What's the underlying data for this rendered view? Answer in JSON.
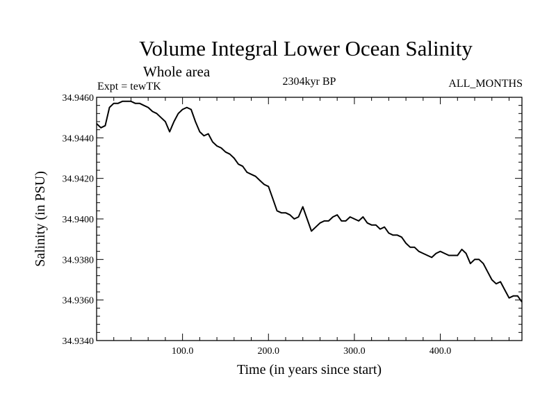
{
  "chart_data": {
    "type": "line",
    "title": "Volume Integral Lower Ocean Salinity",
    "subtitle": "Whole area",
    "experiment": "Expt = tewTK",
    "period": "2304kyr BP",
    "months": "ALL_MONTHS",
    "xlabel": "Time (in years since start)",
    "ylabel": "Salinity (in PSU)",
    "xlim": [
      0,
      495
    ],
    "ylim": [
      34.934,
      34.946
    ],
    "x_ticks": [
      100,
      200,
      300,
      400
    ],
    "x_tick_labels": [
      "100.0",
      "200.0",
      "300.0",
      "400.0"
    ],
    "y_ticks": [
      34.934,
      34.936,
      34.938,
      34.94,
      34.942,
      34.944,
      34.946
    ],
    "y_tick_labels": [
      "34.9340",
      "34.9360",
      "34.9380",
      "34.9400",
      "34.9420",
      "34.9440",
      "34.9460"
    ],
    "series": [
      {
        "name": "Salinity",
        "x": [
          0,
          5,
          10,
          15,
          20,
          25,
          30,
          35,
          40,
          45,
          50,
          55,
          60,
          65,
          70,
          75,
          80,
          85,
          88,
          90,
          95,
          100,
          105,
          110,
          115,
          120,
          125,
          130,
          135,
          140,
          145,
          150,
          155,
          160,
          165,
          170,
          175,
          180,
          185,
          190,
          195,
          200,
          205,
          210,
          215,
          220,
          225,
          230,
          235,
          240,
          245,
          250,
          255,
          260,
          265,
          270,
          275,
          280,
          285,
          290,
          295,
          300,
          305,
          310,
          315,
          320,
          325,
          330,
          335,
          340,
          345,
          350,
          355,
          360,
          365,
          370,
          375,
          380,
          385,
          390,
          395,
          400,
          405,
          410,
          415,
          420,
          425,
          430,
          435,
          440,
          445,
          450,
          455,
          460,
          465,
          470,
          475,
          480,
          485,
          490,
          495
        ],
        "values": [
          34.9447,
          34.9445,
          34.9446,
          34.9455,
          34.9457,
          34.9457,
          34.9458,
          34.9458,
          34.9458,
          34.9457,
          34.9457,
          34.9456,
          34.9455,
          34.9453,
          34.9452,
          34.945,
          34.9448,
          34.9443,
          34.9446,
          34.9448,
          34.9452,
          34.9454,
          34.9455,
          34.9454,
          34.9448,
          34.9443,
          34.9441,
          34.9442,
          34.9438,
          34.9436,
          34.9435,
          34.9433,
          34.9432,
          34.943,
          34.9427,
          34.9426,
          34.9423,
          34.9422,
          34.9421,
          34.9419,
          34.9417,
          34.9416,
          34.941,
          34.9404,
          34.9403,
          34.9403,
          34.9402,
          34.94,
          34.9401,
          34.9406,
          34.94,
          34.9394,
          34.9396,
          34.9398,
          34.9399,
          34.9399,
          34.9401,
          34.9402,
          34.9399,
          34.9399,
          34.9401,
          34.94,
          34.9399,
          34.9401,
          34.9398,
          34.9397,
          34.9397,
          34.9395,
          34.9396,
          34.9393,
          34.9392,
          34.9392,
          34.9391,
          34.9388,
          34.9386,
          34.9386,
          34.9384,
          34.9383,
          34.9382,
          34.9381,
          34.9383,
          34.9384,
          34.9383,
          34.9382,
          34.9382,
          34.9382,
          34.9385,
          34.9383,
          34.9378,
          34.938,
          34.938,
          34.9378,
          34.9374,
          34.937,
          34.9368,
          34.9369,
          34.9365,
          34.9361,
          34.9362,
          34.9362,
          34.9359
        ]
      }
    ]
  }
}
